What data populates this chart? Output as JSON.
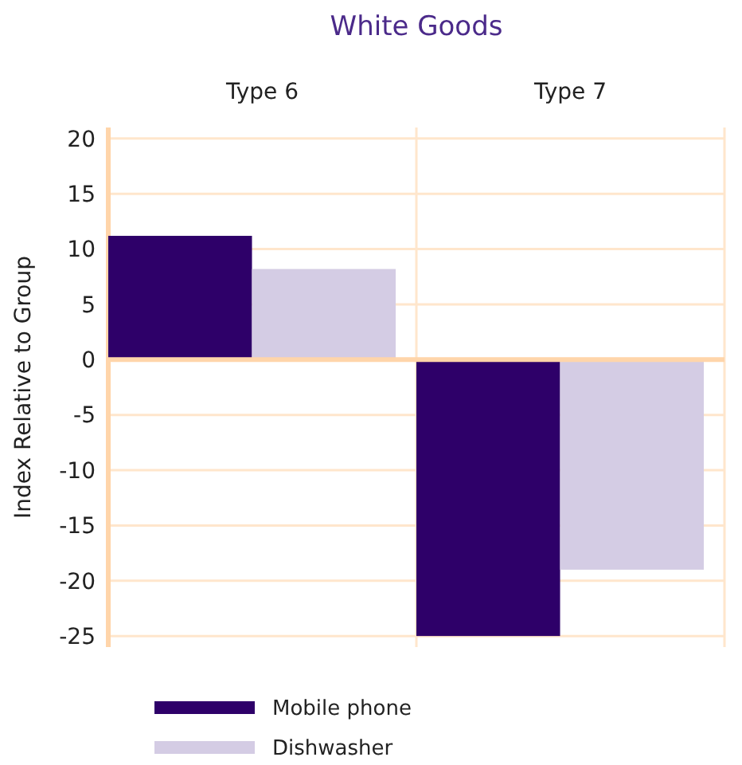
{
  "chart_data": {
    "type": "bar",
    "title": "White Goods",
    "ylabel": "Index Relative to Group",
    "categories": [
      "Type 6",
      "Type 7"
    ],
    "series": [
      {
        "name": "Mobile phone",
        "color": "#2e0069",
        "values": [
          11.2,
          -25
        ]
      },
      {
        "name": "Dishwasher",
        "color": "#d4cce4",
        "values": [
          8.2,
          -19
        ]
      }
    ],
    "ylim": [
      -26,
      21
    ],
    "yticks": [
      -25,
      -20,
      -15,
      -10,
      -5,
      0,
      5,
      10,
      15,
      20
    ],
    "grid": true,
    "legend": "bottom",
    "ref_lines": [
      {
        "axis": "y",
        "value": 0,
        "color": "#ffd5aa"
      }
    ]
  }
}
